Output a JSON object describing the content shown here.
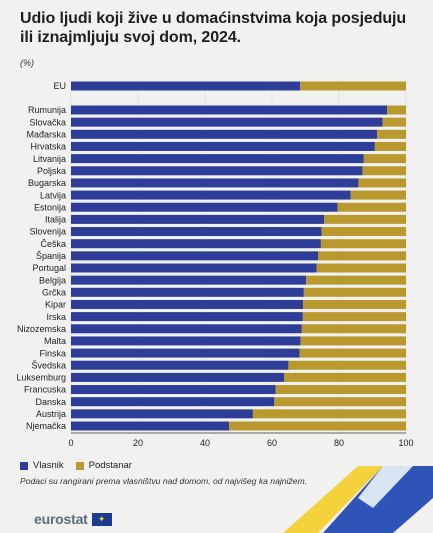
{
  "title": "Udio ljudi koji žive u domaćinstvima koja posjeduju ili iznajmljuju svoj dom, 2024.",
  "unit": "(%)",
  "legend": {
    "owner": "Vlasnik",
    "tenant": "Podstanar"
  },
  "note": "Podaci su rangirani prema vlasništvu nad domom, od najvišeg ka najnižem.",
  "logo": {
    "text": "eurostat",
    "flag_glyph": "✦"
  },
  "colors": {
    "owner": "#2e3e98",
    "tenant": "#b9992e",
    "axis": "#333333",
    "grid": "#d9d9d9"
  },
  "chart_data": {
    "type": "bar",
    "orientation": "horizontal",
    "stacked": true,
    "title": "Udio ljudi koji žive u domaćinstvima koja posjeduju ili iznajmljuju svoj dom, 2024.",
    "ylabel": "",
    "xlabel": "",
    "xlim": [
      0,
      100
    ],
    "xticks": [
      0,
      20,
      40,
      60,
      80,
      100
    ],
    "categories": [
      "EU",
      "Rumunija",
      "Slovačka",
      "Mađarska",
      "Hrvatska",
      "Litvanija",
      "Poljska",
      "Bugarska",
      "Latvija",
      "Estonija",
      "Italija",
      "Slovenija",
      "Češka",
      "Španija",
      "Portugal",
      "Belgija",
      "Grčka",
      "Kipar",
      "Irska",
      "Nizozemska",
      "Malta",
      "Finska",
      "Švedska",
      "Luksemburg",
      "Francuska",
      "Danska",
      "Austrija",
      "Njemačka"
    ],
    "series": [
      {
        "name": "Vlasnik",
        "values": [
          68.4,
          94.4,
          93.0,
          91.4,
          90.7,
          87.4,
          87.0,
          85.8,
          83.5,
          79.6,
          75.6,
          74.8,
          74.6,
          73.8,
          73.3,
          70.2,
          69.5,
          69.3,
          69.2,
          68.9,
          68.5,
          68.2,
          64.9,
          63.6,
          61.1,
          60.7,
          54.3,
          47.2
        ]
      },
      {
        "name": "Podstanar",
        "values": [
          31.6,
          5.6,
          7.0,
          8.6,
          9.3,
          12.6,
          13.0,
          14.2,
          16.5,
          20.4,
          24.4,
          25.2,
          25.4,
          26.2,
          26.7,
          29.8,
          30.5,
          30.7,
          30.8,
          31.1,
          31.5,
          31.8,
          35.1,
          36.4,
          38.9,
          39.3,
          45.7,
          52.8
        ]
      }
    ],
    "grid": true,
    "legend_position": "bottom-left"
  }
}
